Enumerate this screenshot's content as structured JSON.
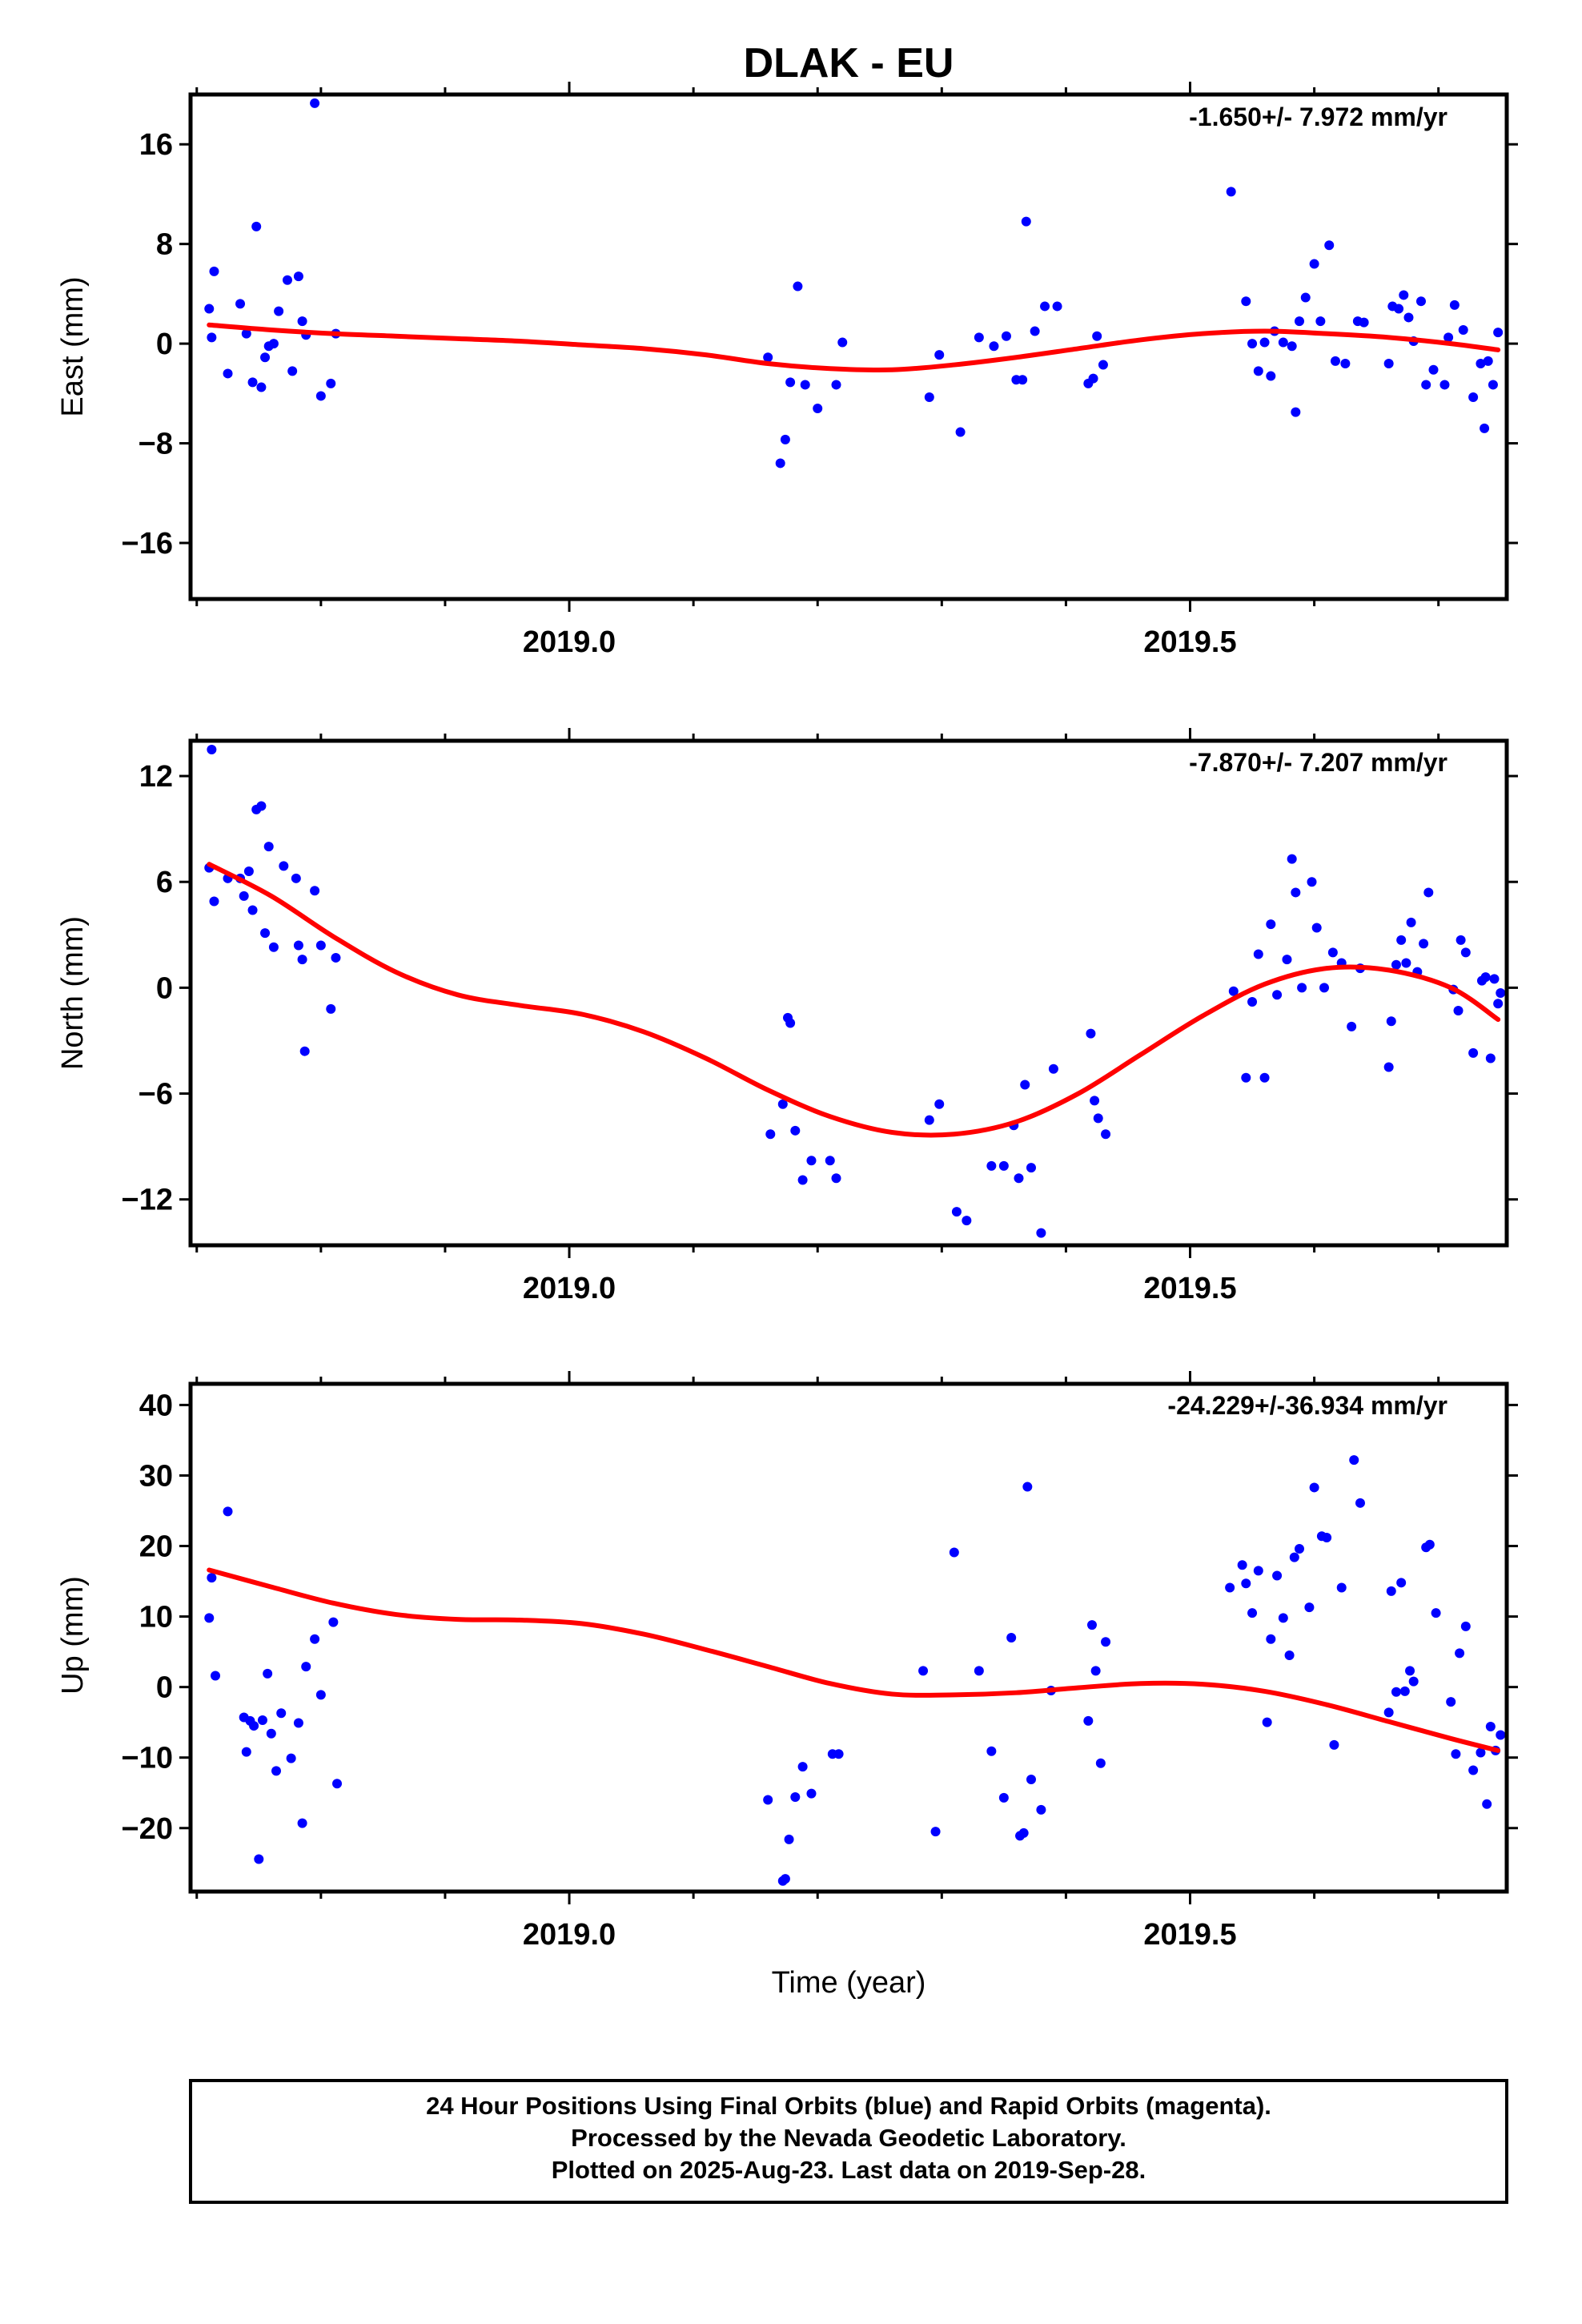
{
  "title": "DLAK - EU",
  "colors": {
    "final_orbits": "#0000ff",
    "rapid_orbits": "#ff00ff",
    "fit_line": "#ff0000",
    "frame": "#000000"
  },
  "x_axis": {
    "label": "Time (year)",
    "ticks": [
      "2019.0",
      "2019.5"
    ]
  },
  "footer": {
    "line1": "24 Hour Positions Using Final Orbits (blue) and Rapid Orbits (magenta).",
    "line2": "Processed by the Nevada Geodetic Laboratory.",
    "line3": "Plotted on 2025-Aug-23. Last data on 2019-Sep-28."
  },
  "chart_data": [
    {
      "type": "scatter",
      "panel": "east",
      "ylabel": "East (mm)",
      "rate_label": "-1.650+/- 7.972 mm/yr",
      "xlim": [
        2018.695,
        2019.755
      ],
      "ylim": [
        -20.5,
        20
      ],
      "x_ticks": [
        2019.0,
        2019.5
      ],
      "x_tick_labels": [
        "2019.0",
        "2019.5"
      ],
      "x_minor_ticks": [
        2018.7,
        2018.8,
        2018.9,
        2019.1,
        2019.2,
        2019.3,
        2019.4,
        2019.6,
        2019.7
      ],
      "y_ticks": [
        -16,
        -8,
        0,
        8,
        16
      ],
      "y_tick_labels": [
        "−16",
        "−8",
        "0",
        "8",
        "16"
      ],
      "series": [
        {
          "name": "Final Orbits",
          "color": "#0000ff",
          "x": [
            2018.71,
            2018.712,
            2018.714,
            2018.725,
            2018.735,
            2018.74,
            2018.745,
            2018.748,
            2018.752,
            2018.755,
            2018.758,
            2018.762,
            2018.766,
            2018.773,
            2018.777,
            2018.782,
            2018.785,
            2018.788,
            2018.795,
            2018.8,
            2018.808,
            2018.812,
            2019.16,
            2019.17,
            2019.174,
            2019.178,
            2019.184,
            2019.19,
            2019.2,
            2019.215,
            2019.22,
            2019.29,
            2019.298,
            2019.315,
            2019.33,
            2019.342,
            2019.352,
            2019.36,
            2019.365,
            2019.368,
            2019.375,
            2019.383,
            2019.393,
            2019.418,
            2019.422,
            2019.425,
            2019.43,
            2019.533,
            2019.545,
            2019.55,
            2019.555,
            2019.56,
            2019.565,
            2019.568,
            2019.575,
            2019.582,
            2019.585,
            2019.588,
            2019.593,
            2019.6,
            2019.605,
            2019.612,
            2019.617,
            2019.625,
            2019.635,
            2019.64,
            2019.66,
            2019.663,
            2019.668,
            2019.672,
            2019.676,
            2019.68,
            2019.686,
            2019.69,
            2019.696,
            2019.705,
            2019.708,
            2019.713,
            2019.72,
            2019.728,
            2019.734,
            2019.737,
            2019.74,
            2019.744,
            2019.748
          ],
          "y": [
            2.8,
            0.5,
            5.8,
            -2.4,
            3.2,
            0.8,
            -3.1,
            9.4,
            -3.5,
            -1.1,
            -0.2,
            0.0,
            2.6,
            5.1,
            -2.2,
            5.4,
            1.8,
            0.7,
            19.3,
            -4.2,
            -3.2,
            0.8,
            -1.1,
            -9.6,
            -7.7,
            -3.1,
            4.6,
            -3.3,
            -5.2,
            -3.3,
            0.1,
            -4.3,
            -0.9,
            -7.1,
            0.5,
            -0.2,
            0.6,
            -2.9,
            -2.9,
            9.8,
            1.0,
            3.0,
            3.0,
            -3.2,
            -2.8,
            0.6,
            -1.7,
            12.2,
            3.4,
            0.0,
            -2.2,
            0.1,
            -2.6,
            1.0,
            0.1,
            -0.2,
            -5.5,
            1.8,
            3.7,
            6.4,
            1.8,
            7.9,
            -1.4,
            -1.6,
            1.8,
            1.7,
            -1.6,
            3.0,
            2.8,
            3.9,
            2.1,
            0.2,
            3.4,
            -3.3,
            -2.1,
            -3.3,
            0.5,
            3.1,
            1.1,
            -4.3,
            -1.6,
            -6.8,
            -1.4,
            -3.3,
            0.9
          ]
        },
        {
          "name": "Fit",
          "color": "#ff0000",
          "x": [
            2018.71,
            2018.76,
            2018.81,
            2018.86,
            2018.91,
            2018.96,
            2019.01,
            2019.06,
            2019.11,
            2019.16,
            2019.21,
            2019.26,
            2019.31,
            2019.36,
            2019.41,
            2019.46,
            2019.51,
            2019.56,
            2019.61,
            2019.66,
            2019.71,
            2019.748
          ],
          "y": [
            1.5,
            1.1,
            0.8,
            0.6,
            0.4,
            0.2,
            -0.1,
            -0.4,
            -0.9,
            -1.6,
            -2.0,
            -2.1,
            -1.7,
            -1.1,
            -0.4,
            0.3,
            0.8,
            1.0,
            0.8,
            0.5,
            0.0,
            -0.5
          ]
        }
      ]
    },
    {
      "type": "scatter",
      "panel": "north",
      "ylabel": "North (mm)",
      "rate_label": "-7.870+/- 7.207 mm/yr",
      "xlim": [
        2018.695,
        2019.755
      ],
      "ylim": [
        -14.6,
        14
      ],
      "x_ticks": [
        2019.0,
        2019.5
      ],
      "x_tick_labels": [
        "2019.0",
        "2019.5"
      ],
      "x_minor_ticks": [
        2018.7,
        2018.8,
        2018.9,
        2019.1,
        2019.2,
        2019.3,
        2019.4,
        2019.6,
        2019.7
      ],
      "y_ticks": [
        -12,
        -6,
        0,
        6,
        12
      ],
      "y_tick_labels": [
        "−12",
        "−6",
        "0",
        "6",
        "12"
      ],
      "series": [
        {
          "name": "Final Orbits",
          "color": "#0000ff",
          "x": [
            2018.71,
            2018.712,
            2018.714,
            2018.725,
            2018.735,
            2018.738,
            2018.742,
            2018.745,
            2018.748,
            2018.752,
            2018.755,
            2018.758,
            2018.762,
            2018.77,
            2018.78,
            2018.782,
            2018.785,
            2018.787,
            2018.795,
            2018.8,
            2018.808,
            2018.812,
            2019.162,
            2019.172,
            2019.176,
            2019.178,
            2019.182,
            2019.188,
            2019.195,
            2019.21,
            2019.215,
            2019.29,
            2019.298,
            2019.312,
            2019.32,
            2019.34,
            2019.35,
            2019.358,
            2019.362,
            2019.367,
            2019.372,
            2019.38,
            2019.39,
            2019.42,
            2019.423,
            2019.426,
            2019.432,
            2019.535,
            2019.545,
            2019.55,
            2019.555,
            2019.56,
            2019.565,
            2019.57,
            2019.578,
            2019.582,
            2019.585,
            2019.59,
            2019.598,
            2019.602,
            2019.608,
            2019.615,
            2019.622,
            2019.63,
            2019.637,
            2019.66,
            2019.662,
            2019.666,
            2019.67,
            2019.674,
            2019.678,
            2019.683,
            2019.688,
            2019.692,
            2019.712,
            2019.716,
            2019.718,
            2019.722,
            2019.728,
            2019.735,
            2019.738,
            2019.742,
            2019.745,
            2019.748,
            2019.75
          ],
          "y": [
            6.8,
            13.5,
            4.9,
            6.2,
            6.2,
            5.2,
            6.6,
            4.4,
            10.1,
            10.3,
            3.1,
            8.0,
            2.3,
            6.9,
            6.2,
            2.4,
            1.6,
            -3.6,
            5.5,
            2.4,
            -1.2,
            1.7,
            -8.3,
            -6.6,
            -1.7,
            -2.0,
            -8.1,
            -10.9,
            -9.8,
            -9.8,
            -10.8,
            -7.5,
            -6.6,
            -12.7,
            -13.2,
            -10.1,
            -10.1,
            -7.8,
            -10.8,
            -5.5,
            -10.2,
            -13.9,
            -4.6,
            -2.6,
            -6.4,
            -7.4,
            -8.3,
            -0.2,
            -5.1,
            -0.8,
            1.9,
            -5.1,
            3.6,
            -0.4,
            1.6,
            7.3,
            5.4,
            0.0,
            6.0,
            3.4,
            0.0,
            2.0,
            1.4,
            -2.2,
            1.1,
            -4.5,
            -1.9,
            1.3,
            2.7,
            1.4,
            3.7,
            0.9,
            2.5,
            5.4,
            -0.1,
            -1.3,
            2.7,
            2.0,
            -3.7,
            0.4,
            0.6,
            -4.0,
            0.5,
            -0.9,
            -0.3
          ]
        },
        {
          "name": "Fit",
          "color": "#ff0000",
          "x": [
            2018.71,
            2018.76,
            2018.81,
            2018.86,
            2018.91,
            2018.96,
            2019.01,
            2019.06,
            2019.11,
            2019.16,
            2019.21,
            2019.26,
            2019.31,
            2019.36,
            2019.41,
            2019.46,
            2019.51,
            2019.56,
            2019.61,
            2019.66,
            2019.71,
            2019.748
          ],
          "y": [
            7.0,
            5.2,
            2.9,
            0.9,
            -0.4,
            -1.0,
            -1.5,
            -2.5,
            -4.0,
            -5.8,
            -7.3,
            -8.2,
            -8.3,
            -7.6,
            -6.0,
            -3.8,
            -1.6,
            0.2,
            1.1,
            1.0,
            0.0,
            -1.8
          ]
        }
      ]
    },
    {
      "type": "scatter",
      "panel": "up",
      "ylabel": "Up (mm)",
      "rate_label": "-24.229+/-36.934 mm/yr",
      "xlim": [
        2018.695,
        2019.755
      ],
      "ylim": [
        -29,
        43
      ],
      "x_ticks": [
        2019.0,
        2019.5
      ],
      "x_tick_labels": [
        "2019.0",
        "2019.5"
      ],
      "x_minor_ticks": [
        2018.7,
        2018.8,
        2018.9,
        2019.1,
        2019.2,
        2019.3,
        2019.4,
        2019.6,
        2019.7
      ],
      "y_ticks": [
        -20,
        -10,
        0,
        10,
        20,
        30,
        40
      ],
      "y_tick_labels": [
        "−20",
        "−10",
        "0",
        "10",
        "20",
        "30",
        "40"
      ],
      "series": [
        {
          "name": "Final Orbits",
          "color": "#0000ff",
          "x": [
            2018.71,
            2018.712,
            2018.715,
            2018.725,
            2018.738,
            2018.74,
            2018.743,
            2018.746,
            2018.75,
            2018.753,
            2018.757,
            2018.76,
            2018.764,
            2018.768,
            2018.776,
            2018.782,
            2018.785,
            2018.788,
            2018.795,
            2018.8,
            2018.81,
            2018.813,
            2019.16,
            2019.172,
            2019.174,
            2019.177,
            2019.182,
            2019.188,
            2019.195,
            2019.212,
            2019.217,
            2019.285,
            2019.295,
            2019.31,
            2019.33,
            2019.34,
            2019.35,
            2019.356,
            2019.363,
            2019.366,
            2019.369,
            2019.372,
            2019.38,
            2019.388,
            2019.418,
            2019.421,
            2019.424,
            2019.428,
            2019.432,
            2019.532,
            2019.542,
            2019.545,
            2019.55,
            2019.555,
            2019.562,
            2019.565,
            2019.57,
            2019.575,
            2019.58,
            2019.584,
            2019.588,
            2019.596,
            2019.6,
            2019.606,
            2019.61,
            2019.616,
            2019.622,
            2019.632,
            2019.637,
            2019.66,
            2019.662,
            2019.666,
            2019.67,
            2019.673,
            2019.677,
            2019.68,
            2019.69,
            2019.693,
            2019.698,
            2019.71,
            2019.714,
            2019.717,
            2019.722,
            2019.728,
            2019.734,
            2019.739,
            2019.742,
            2019.746,
            2019.75
          ],
          "y": [
            9.8,
            15.5,
            1.6,
            24.9,
            -4.3,
            -9.2,
            -4.8,
            -5.5,
            -24.4,
            -4.7,
            1.9,
            -6.6,
            -11.9,
            -3.7,
            -10.1,
            -5.1,
            -19.3,
            2.9,
            6.8,
            -1.1,
            9.2,
            -13.7,
            -16.0,
            -27.5,
            -27.2,
            -21.6,
            -15.6,
            -11.3,
            -15.1,
            -9.5,
            -9.5,
            2.3,
            -20.5,
            19.1,
            2.3,
            -9.1,
            -15.7,
            7.0,
            -21.1,
            -20.7,
            28.4,
            -13.1,
            -17.4,
            -0.5,
            -4.8,
            8.8,
            2.3,
            -10.8,
            6.4,
            14.1,
            17.3,
            14.7,
            10.5,
            16.5,
            -5.0,
            6.8,
            15.8,
            9.8,
            4.5,
            18.4,
            19.6,
            11.3,
            28.3,
            21.4,
            21.2,
            -8.2,
            14.1,
            32.2,
            26.1,
            -3.6,
            13.6,
            -0.7,
            14.8,
            -0.6,
            2.3,
            0.8,
            19.8,
            20.2,
            10.5,
            -2.1,
            -9.5,
            4.8,
            8.6,
            -11.8,
            -9.3,
            -16.6,
            -5.6,
            -9.0,
            -6.8
          ]
        },
        {
          "name": "Fit",
          "color": "#ff0000",
          "x": [
            2018.71,
            2018.76,
            2018.81,
            2018.86,
            2018.91,
            2018.96,
            2019.01,
            2019.06,
            2019.11,
            2019.16,
            2019.21,
            2019.26,
            2019.31,
            2019.36,
            2019.41,
            2019.46,
            2019.51,
            2019.56,
            2019.61,
            2019.66,
            2019.71,
            2019.748
          ],
          "y": [
            16.6,
            14.2,
            11.9,
            10.3,
            9.6,
            9.5,
            9.0,
            7.5,
            5.3,
            2.9,
            0.5,
            -1.0,
            -1.1,
            -0.8,
            -0.1,
            0.5,
            0.4,
            -0.6,
            -2.5,
            -4.9,
            -7.3,
            -9.0
          ]
        }
      ]
    }
  ]
}
